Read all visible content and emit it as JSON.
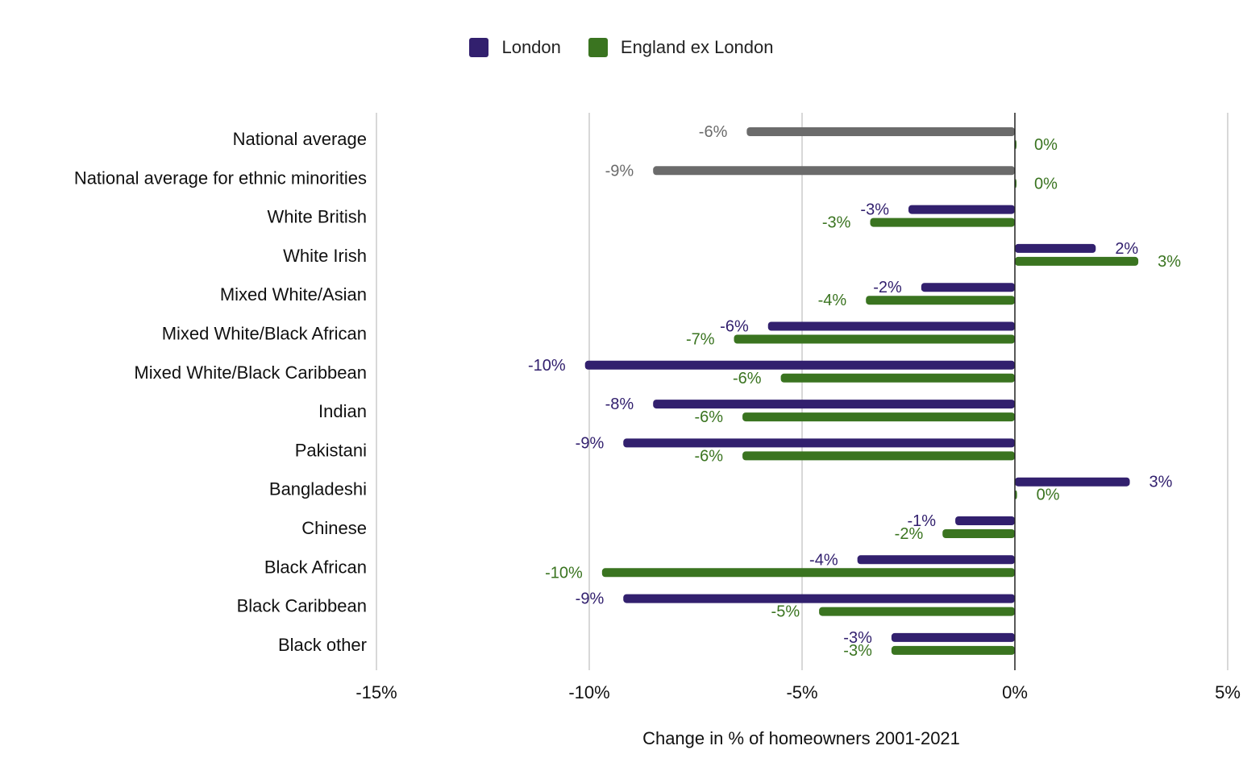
{
  "chart_data": {
    "type": "bar",
    "orientation": "horizontal",
    "title": "",
    "xlabel": "Change in % of homeowners 2001-2021",
    "ylabel": "",
    "xlim": [
      -15,
      5
    ],
    "xticks": [
      -15,
      -10,
      -5,
      0,
      5
    ],
    "xtick_labels": [
      "-15%",
      "-10%",
      "-5%",
      "0%",
      "5%"
    ],
    "grid": true,
    "legend": "top-center",
    "colors": {
      "London": "#32206e",
      "England ex London": "#3a7420",
      "National": "#6b6b6b"
    },
    "categories": [
      "National average",
      "National average for ethnic minorities",
      "White British",
      "White Irish",
      "Mixed White/Asian",
      "Mixed White/Black African",
      "Mixed White/Black Caribbean",
      "Indian",
      "Pakistani",
      "Bangladeshi",
      "Chinese",
      "Black African",
      "Black Caribbean",
      "Black other"
    ],
    "series": [
      {
        "name": "London",
        "values": [
          -6.3,
          -8.5,
          -2.5,
          1.9,
          -2.2,
          -5.8,
          -10.1,
          -8.5,
          -9.2,
          2.7,
          -1.4,
          -3.7,
          -9.2,
          -2.9
        ],
        "labels": [
          "-6%",
          "-9%",
          "-3%",
          "2%",
          "-2%",
          "-6%",
          "-10%",
          "-8%",
          "-9%",
          "3%",
          "-1%",
          "-4%",
          "-9%",
          "-3%"
        ]
      },
      {
        "name": "England ex London",
        "values": [
          0,
          0,
          -3.4,
          2.9,
          -3.5,
          -6.6,
          -5.5,
          -6.4,
          -6.4,
          0.05,
          -1.7,
          -9.7,
          -4.6,
          -2.9
        ],
        "labels": [
          "0%",
          "0%",
          "-3%",
          "3%",
          "-4%",
          "-7%",
          "-6%",
          "-6%",
          "-6%",
          "0%",
          "-2%",
          "-10%",
          "-5%",
          "-3%"
        ]
      }
    ],
    "national_color_categories": [
      0,
      1
    ]
  }
}
